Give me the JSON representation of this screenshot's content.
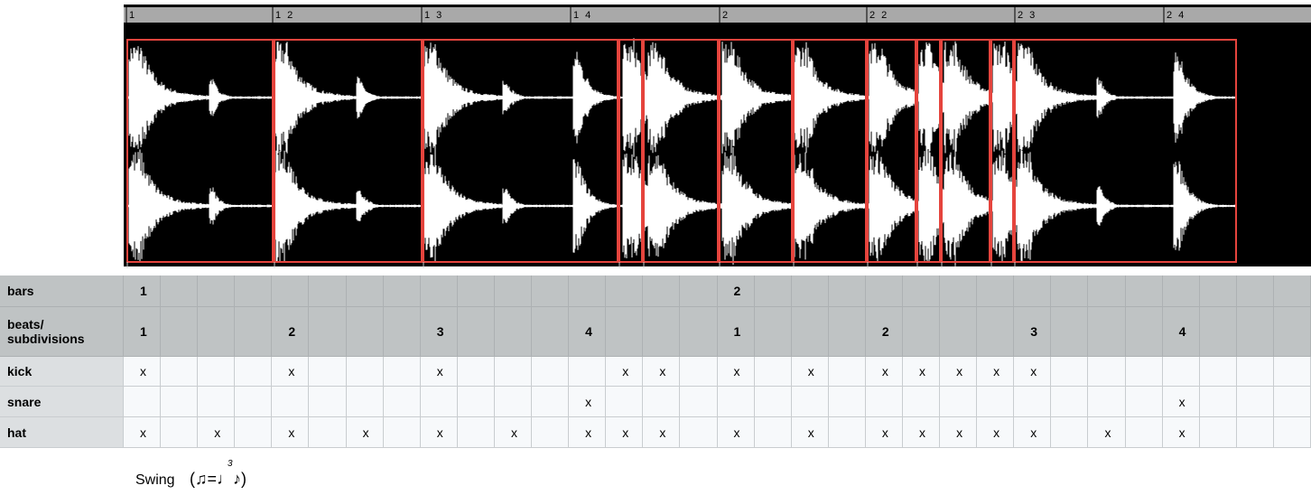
{
  "ruler": {
    "labels": [
      "1",
      "1 2",
      "1 3",
      "1 4",
      "2",
      "2 2",
      "2 3",
      "2 4"
    ]
  },
  "table": {
    "rows": [
      {
        "label": "bars",
        "cells": [
          "1",
          null,
          null,
          null,
          null,
          null,
          null,
          null,
          null,
          null,
          null,
          null,
          null,
          null,
          null,
          null,
          "2",
          null,
          null,
          null,
          null,
          null,
          null,
          null,
          null,
          null,
          null,
          null,
          null,
          null,
          null,
          null
        ]
      },
      {
        "label": "beats/ subdivisions",
        "cells": [
          "1",
          null,
          null,
          null,
          "2",
          null,
          null,
          null,
          "3",
          null,
          null,
          null,
          "4",
          null,
          null,
          null,
          "1",
          null,
          null,
          null,
          "2",
          null,
          null,
          null,
          "3",
          null,
          null,
          null,
          "4",
          null,
          null,
          null
        ]
      },
      {
        "label": "kick",
        "cells": [
          "x",
          null,
          null,
          null,
          "x",
          null,
          null,
          null,
          "x",
          null,
          null,
          null,
          null,
          "x",
          "x",
          null,
          "x",
          null,
          "x",
          null,
          "x",
          "x",
          "x",
          "x",
          "x",
          null,
          null,
          null,
          null,
          null,
          null,
          null
        ]
      },
      {
        "label": "snare",
        "cells": [
          null,
          null,
          null,
          null,
          null,
          null,
          null,
          null,
          null,
          null,
          null,
          null,
          "x",
          null,
          null,
          null,
          null,
          null,
          null,
          null,
          null,
          null,
          null,
          null,
          null,
          null,
          null,
          null,
          "x",
          null,
          null,
          null
        ]
      },
      {
        "label": "hat",
        "cells": [
          "x",
          null,
          "x",
          null,
          "x",
          null,
          "x",
          null,
          "x",
          null,
          "x",
          null,
          "x",
          "x",
          "x",
          null,
          "x",
          null,
          "x",
          null,
          "x",
          "x",
          "x",
          "x",
          "x",
          null,
          "x",
          null,
          "x",
          null,
          null,
          null
        ]
      }
    ]
  },
  "footer": {
    "swing": "Swing",
    "notation": "(♫=♩♪)",
    "triplet": "3"
  }
}
